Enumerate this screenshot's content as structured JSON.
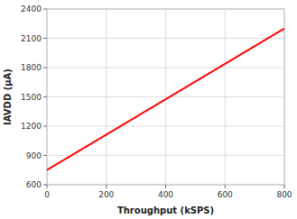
{
  "chart_data": {
    "type": "line",
    "x_label": "Throughput (kSPS)",
    "y_label": "IAVDD (μA)",
    "x": [
      0,
      800
    ],
    "values": [
      750,
      2200
    ],
    "color": "#ff0000",
    "xlim": [
      0,
      800
    ],
    "ylim": [
      600,
      2400
    ],
    "xticks": [
      0,
      200,
      400,
      600,
      800
    ],
    "yticks": [
      600,
      900,
      1200,
      1500,
      1800,
      2100,
      2400
    ],
    "grid": true
  }
}
